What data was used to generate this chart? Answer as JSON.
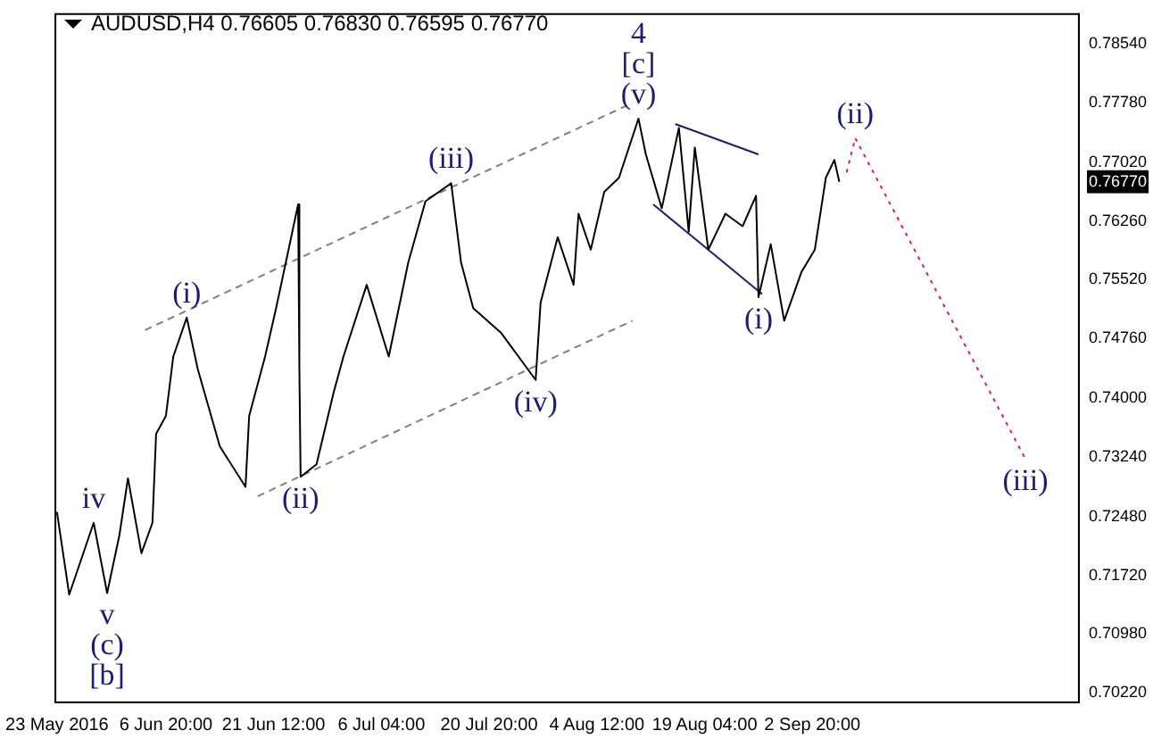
{
  "chart_data": {
    "type": "line",
    "title": "AUDUSD,H4  0.76605 0.76830 0.76595 0.76770",
    "xlim": [
      "2016-05-22T16:00",
      "2016-10-09T00:00"
    ],
    "xticks": [
      {
        "value": "2016-05-23T00:00",
        "label": "23 May 2016"
      },
      {
        "value": "2016-06-06T20:00",
        "label": "6 Jun 20:00"
      },
      {
        "value": "2016-06-21T12:00",
        "label": "21 Jun 12:00"
      },
      {
        "value": "2016-07-06T04:00",
        "label": "6 Jul 04:00"
      },
      {
        "value": "2016-07-20T20:00",
        "label": "20 Jul 20:00"
      },
      {
        "value": "2016-08-04T12:00",
        "label": "4 Aug 12:00"
      },
      {
        "value": "2016-08-19T04:00",
        "label": "19 Aug 04:00"
      },
      {
        "value": "2016-09-02T20:00",
        "label": "2 Sep 20:00"
      }
    ],
    "ylim": [
      0.7011,
      0.7893
    ],
    "yticks": [
      {
        "value": 0.7022,
        "label": "0.70220"
      },
      {
        "value": 0.7098,
        "label": "0.70980"
      },
      {
        "value": 0.7172,
        "label": "0.71720"
      },
      {
        "value": 0.7248,
        "label": "0.72480"
      },
      {
        "value": 0.7324,
        "label": "0.73240"
      },
      {
        "value": 0.74,
        "label": "0.74000"
      },
      {
        "value": 0.7476,
        "label": "0.74760"
      },
      {
        "value": 0.7552,
        "label": "0.75520"
      },
      {
        "value": 0.7626,
        "label": "0.76260"
      },
      {
        "value": 0.7677,
        "label": "0.76770"
      },
      {
        "value": 0.7702,
        "label": "0.77020"
      },
      {
        "value": 0.7778,
        "label": "0.77780"
      },
      {
        "value": 0.7854,
        "label": "0.78540"
      }
    ],
    "grid": false,
    "legend": false,
    "marker": "none",
    "series": [
      {
        "type": "line",
        "color": "#000000",
        "line_style": "solid",
        "x": [
          "2016-05-23T00:00",
          "2016-05-24T16:00",
          "2016-05-28T00:00",
          "2016-05-29T20:00",
          "2016-05-31T12:00",
          "2016-06-01T16:00",
          "2016-06-03T12:00",
          "2016-06-05T00:00",
          "2016-06-05T12:00",
          "2016-06-06T20:00",
          "2016-06-07T20:00",
          "2016-06-09T16:00",
          "2016-06-11T04:00",
          "2016-06-14T04:00",
          "2016-06-17T16:00",
          "2016-06-18T04:00",
          "2016-06-20T08:00",
          "2016-06-21T20:00",
          "2016-06-24T20:00",
          "2016-06-25T00:00",
          "2016-06-25T04:00",
          "2016-06-27T08:00",
          "2016-06-29T16:00",
          "2016-07-01T00:00",
          "2016-07-04T04:00",
          "2016-07-07T04:00",
          "2016-07-09T20:00",
          "2016-07-12T04:00",
          "2016-07-15T16:00",
          "2016-07-17T00:00",
          "2016-07-18T16:00",
          "2016-07-22T12:00",
          "2016-07-27T04:00",
          "2016-07-27T20:00",
          "2016-07-30T04:00",
          "2016-08-01T08:00",
          "2016-08-02T00:00",
          "2016-08-03T16:00",
          "2016-08-05T12:00",
          "2016-08-07T12:00",
          "2016-08-10T04:00",
          "2016-08-11T04:00",
          "2016-08-13T08:00",
          "2016-08-15T16:00",
          "2016-08-17T00:00",
          "2016-08-17T20:00",
          "2016-08-19T16:00",
          "2016-08-22T00:00",
          "2016-08-24T08:00",
          "2016-08-26T04:00",
          "2016-08-26T12:00",
          "2016-08-28T04:00",
          "2016-08-30T00:00",
          "2016-09-01T08:00",
          "2016-09-03T04:00",
          "2016-09-04T16:00",
          "2016-09-05T20:00",
          "2016-09-06T12:00"
        ],
        "values": [
          0.7254,
          0.7148,
          0.724,
          0.715,
          0.7224,
          0.7297,
          0.7201,
          0.724,
          0.7354,
          0.7377,
          0.7453,
          0.7503,
          0.7437,
          0.7338,
          0.7286,
          0.7377,
          0.7453,
          0.7515,
          0.7648,
          0.7437,
          0.7299,
          0.7315,
          0.7407,
          0.7453,
          0.7545,
          0.7453,
          0.7574,
          0.7652,
          0.7675,
          0.7574,
          0.7515,
          0.7483,
          0.7423,
          0.7522,
          0.7606,
          0.7545,
          0.7636,
          0.759,
          0.7664,
          0.7682,
          0.7758,
          0.7712,
          0.7643,
          0.7746,
          0.7613,
          0.7721,
          0.759,
          0.7636,
          0.762,
          0.7659,
          0.7529,
          0.7597,
          0.7499,
          0.7561,
          0.759,
          0.7682,
          0.7705,
          0.7677
        ]
      },
      {
        "type": "line",
        "color": "#808080",
        "line_style": "dashed",
        "x": [
          "2016-06-04T00:00",
          "2016-08-09T08:00"
        ],
        "values": [
          0.7487,
          0.7778
        ]
      },
      {
        "type": "line",
        "color": "#808080",
        "line_style": "dashed",
        "x": [
          "2016-06-19T08:00",
          "2016-08-09T08:00"
        ],
        "values": [
          0.7274,
          0.7499
        ]
      },
      {
        "type": "line",
        "color": "#1c1c78",
        "line_style": "solid",
        "x": [
          "2016-08-15T04:00",
          "2016-08-26T12:00"
        ],
        "values": [
          0.7751,
          0.7712
        ]
      },
      {
        "type": "line",
        "color": "#1c1c78",
        "line_style": "solid",
        "x": [
          "2016-08-12T04:00",
          "2016-08-27T00:00"
        ],
        "values": [
          0.7648,
          0.7533
        ]
      },
      {
        "type": "line",
        "color": "#e0204a",
        "line_style": "dotted",
        "x": [
          "2016-09-07T12:00",
          "2016-09-08T16:00",
          "2016-10-01T20:00"
        ],
        "values": [
          0.7689,
          0.7733,
          0.7322
        ]
      }
    ],
    "annotations": [
      {
        "text": "(v)",
        "x": "2016-08-10T04:00",
        "y": 0.7758
      },
      {
        "text": "[c]",
        "x": "2016-08-10T04:00",
        "y": 0.7758
      },
      {
        "text": "4",
        "x": "2016-08-10T04:00",
        "y": 0.7758
      },
      {
        "text": "(iii)",
        "x": "2016-07-15T16:00",
        "y": 0.7675
      },
      {
        "text": "(i)",
        "x": "2016-06-09T16:00",
        "y": 0.7503
      },
      {
        "text": "(ii)",
        "x": "2016-06-25T04:00",
        "y": 0.7299
      },
      {
        "text": "(iv)",
        "x": "2016-07-27T04:00",
        "y": 0.7423
      },
      {
        "text": "(i)",
        "x": "2016-08-26T12:00",
        "y": 0.7529
      },
      {
        "text": "(ii)",
        "x": "2016-09-08T16:00",
        "y": 0.7733
      },
      {
        "text": "(iii)",
        "x": "2016-10-01T20:00",
        "y": 0.7322
      },
      {
        "text": "iv",
        "x": "2016-05-28T00:00",
        "y": 0.724
      },
      {
        "text": "v",
        "x": "2016-05-29T20:00",
        "y": 0.715
      },
      {
        "text": "(c)",
        "x": "2016-05-29T20:00",
        "y": 0.715
      },
      {
        "text": "[b]",
        "x": "2016-05-29T20:00",
        "y": 0.715
      }
    ]
  }
}
